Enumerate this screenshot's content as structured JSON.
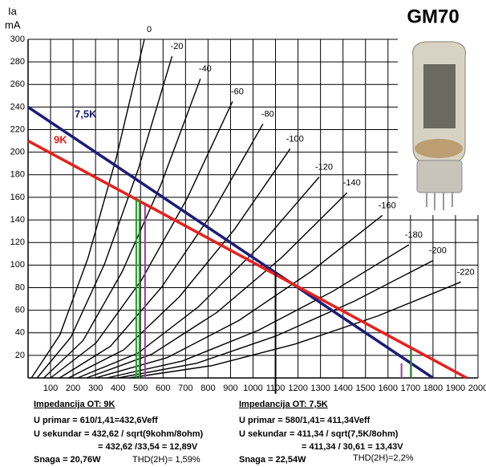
{
  "chart_data": {
    "type": "line",
    "title": "GM70",
    "ylabel": "Ia",
    "yunit": "mA",
    "xlim": [
      0,
      2000
    ],
    "ylim": [
      0,
      300
    ],
    "xticks": [
      100,
      200,
      300,
      400,
      500,
      600,
      700,
      800,
      900,
      1000,
      1100,
      1200,
      1300,
      1400,
      1500,
      1600,
      1700,
      1800,
      1900,
      2000
    ],
    "yticks": [
      20,
      40,
      60,
      80,
      100,
      120,
      140,
      160,
      180,
      200,
      220,
      240,
      260,
      280,
      300
    ],
    "grid": true,
    "series": [
      {
        "name": "0",
        "color": "#000000",
        "x": [
          15,
          141,
          266,
          392,
          517
        ],
        "values": [
          0,
          38,
          106,
          195,
          300
        ]
      },
      {
        "name": "-20",
        "color": "#000000",
        "x": [
          40,
          190,
          340,
          490,
          640
        ],
        "values": [
          0,
          36,
          101,
          185,
          285
        ]
      },
      {
        "name": "-40",
        "color": "#000000",
        "x": [
          70,
          244,
          418,
          592,
          766
        ],
        "values": [
          0,
          33,
          94,
          172,
          265
        ]
      },
      {
        "name": "-60",
        "color": "#000000",
        "x": [
          100,
          302,
          505,
          707,
          909
        ],
        "values": [
          0,
          31,
          87,
          159,
          245
        ]
      },
      {
        "name": "-80",
        "color": "#000000",
        "x": [
          140,
          366,
          592,
          818,
          1044
        ],
        "values": [
          0,
          28,
          80,
          146,
          225
        ]
      },
      {
        "name": "-100",
        "color": "#000000",
        "x": [
          180,
          426,
          673,
          919,
          1165
        ],
        "values": [
          0,
          25,
          72,
          132,
          203
        ]
      },
      {
        "name": "-120",
        "color": "#000000",
        "x": [
          220,
          489,
          757,
          1026,
          1294
        ],
        "values": [
          0,
          22,
          63,
          116,
          178
        ]
      },
      {
        "name": "-140",
        "color": "#000000",
        "x": [
          260,
          550,
          839,
          1129,
          1418
        ],
        "values": [
          0,
          21,
          58,
          107,
          164
        ]
      },
      {
        "name": "-160",
        "color": "#000000",
        "x": [
          300,
          619,
          938,
          1256,
          1575
        ],
        "values": [
          0,
          18,
          51,
          94,
          144
        ]
      },
      {
        "name": "-180",
        "color": "#000000",
        "x": [
          350,
          686,
          1022,
          1357,
          1693
        ],
        "values": [
          0,
          15,
          42,
          77,
          118
        ]
      },
      {
        "name": "-200",
        "color": "#000000",
        "x": [
          400,
          750,
          1100,
          1450,
          1800
        ],
        "values": [
          0,
          13,
          37,
          68,
          104
        ]
      },
      {
        "name": "-220",
        "color": "#000000",
        "x": [
          450,
          819,
          1187,
          1556,
          1924
        ],
        "values": [
          0,
          11,
          30,
          55,
          85
        ]
      }
    ],
    "load_lines": [
      {
        "name": "7,5K",
        "color": "#1c1c78",
        "x": [
          0,
          1800
        ],
        "values": [
          240,
          0
        ]
      },
      {
        "name": "9K",
        "color": "#e8201c",
        "x": [
          0,
          1950
        ],
        "values": [
          210,
          0
        ]
      }
    ],
    "markers": [
      {
        "color": "#2a9a2a",
        "x": 481,
        "y": [
          0,
          158
        ]
      },
      {
        "color": "#2a9a2a",
        "x": 495,
        "y": [
          0,
          158
        ]
      },
      {
        "color": "#9a3aa0",
        "x": 520,
        "y": [
          0,
          154
        ]
      },
      {
        "color": "#000000",
        "x": 1100,
        "y": [
          -14,
          93
        ]
      },
      {
        "color": "#9a3aa0",
        "x": 1660,
        "y": [
          0,
          13
        ]
      },
      {
        "color": "#2a9a2a",
        "x": 1703,
        "y": [
          0,
          25
        ]
      }
    ],
    "notes_left": [
      "Impedancija OT: 9K",
      "U primar =  610/1,41=432,6Veff",
      "U sekundar =  432,62 / sqrt(9kohm/8ohm)",
      "= 432,62 /33,54 = 12,89V",
      "Snaga = 20,76W",
      "THD(2H)= 1,59%"
    ],
    "notes_right": [
      "Impedancija OT: 7,5K",
      "U primar = 580/1,41= 411,34Veff",
      "U sekundar = 411,34 / sqrt(7,5K/8ohm)",
      "= 411,34 / 30,61 = 13,43V",
      "Snaga = 22,54W",
      "THD(2H)=2,2%"
    ]
  }
}
